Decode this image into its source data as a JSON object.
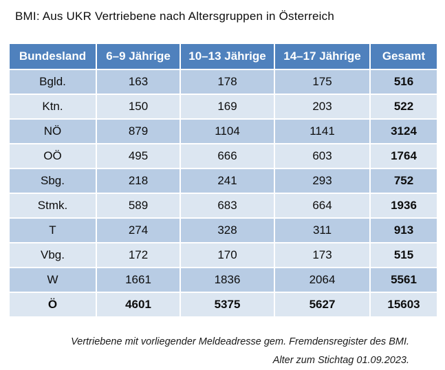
{
  "title": "BMI: Aus UKR Vertriebene nach Altersgruppen in Österreich",
  "table": {
    "columns": [
      "Bundesland",
      "6–9 Jährige",
      "10–13 Jährige",
      "14–17 Jährige",
      "Gesamt"
    ],
    "rows": [
      [
        "Bgld.",
        "163",
        "178",
        "175",
        "516"
      ],
      [
        "Ktn.",
        "150",
        "169",
        "203",
        "522"
      ],
      [
        "NÖ",
        "879",
        "1104",
        "1141",
        "3124"
      ],
      [
        "OÖ",
        "495",
        "666",
        "603",
        "1764"
      ],
      [
        "Sbg.",
        "218",
        "241",
        "293",
        "752"
      ],
      [
        "Stmk.",
        "589",
        "683",
        "664",
        "1936"
      ],
      [
        "T",
        "274",
        "328",
        "311",
        "913"
      ],
      [
        "Vbg.",
        "172",
        "170",
        "173",
        "515"
      ],
      [
        "W",
        "1661",
        "1836",
        "2064",
        "5561"
      ],
      [
        "Ö",
        "4601",
        "5375",
        "5627",
        "15603"
      ]
    ]
  },
  "footnote": {
    "line1": "Vertriebene mit vorliegender Meldeadresse gem. Fremdensregister des BMI.",
    "line2": "Alter zum Stichtag 01.09.2023."
  },
  "colors": {
    "header_bg": "#4f81bd",
    "header_text": "#ffffff",
    "row_band_dark": "#b8cce4",
    "row_band_light": "#dce6f1",
    "body_text": "#000000"
  },
  "chart_data": {
    "type": "table",
    "title": "BMI: Aus UKR Vertriebene nach Altersgruppen in Österreich",
    "columns": [
      "Bundesland",
      "6–9 Jährige",
      "10–13 Jährige",
      "14–17 Jährige",
      "Gesamt"
    ],
    "categories": [
      "Bgld.",
      "Ktn.",
      "NÖ",
      "OÖ",
      "Sbg.",
      "Stmk.",
      "T",
      "Vbg.",
      "W",
      "Ö"
    ],
    "series": [
      {
        "name": "6–9 Jährige",
        "values": [
          163,
          150,
          879,
          495,
          218,
          589,
          274,
          172,
          1661,
          4601
        ]
      },
      {
        "name": "10–13 Jährige",
        "values": [
          178,
          169,
          1104,
          666,
          241,
          683,
          328,
          170,
          1836,
          5375
        ]
      },
      {
        "name": "14–17 Jährige",
        "values": [
          175,
          203,
          1141,
          603,
          293,
          664,
          311,
          173,
          2064,
          5627
        ]
      },
      {
        "name": "Gesamt",
        "values": [
          516,
          522,
          3124,
          1764,
          752,
          1936,
          913,
          515,
          5561,
          15603
        ]
      }
    ],
    "total_row_label": "Ö",
    "annotations": [
      "Vertriebene mit vorliegender Meldeadresse gem. Fremdensregister des BMI.",
      "Alter zum Stichtag 01.09.2023."
    ]
  }
}
